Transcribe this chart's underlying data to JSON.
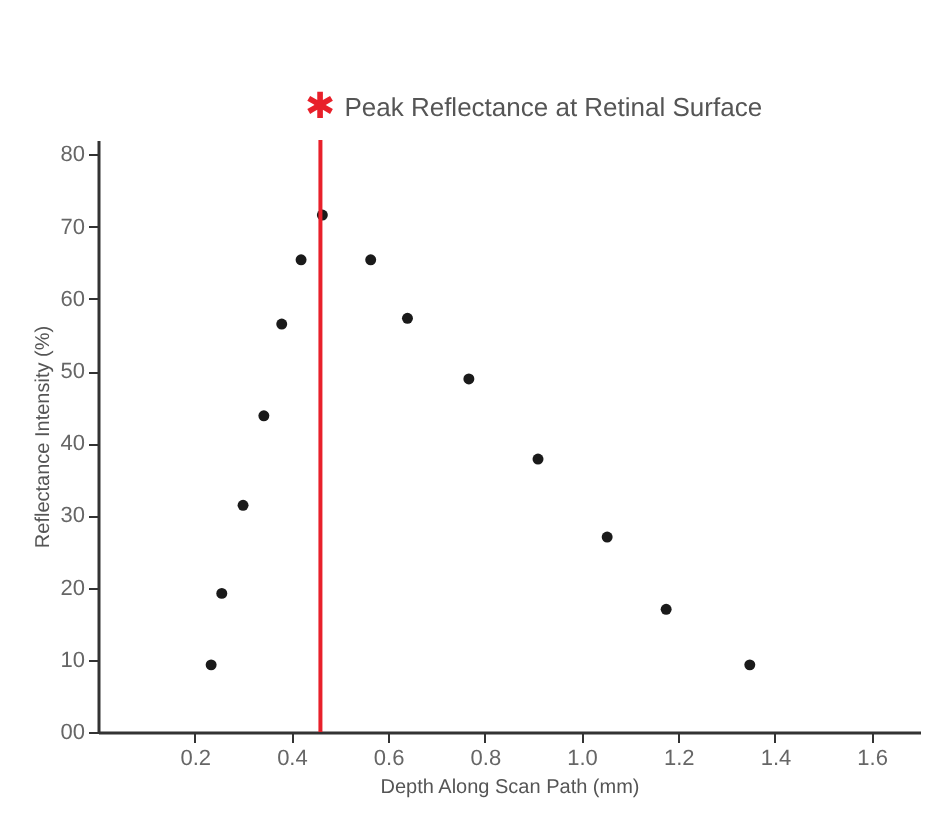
{
  "chart_data": {
    "type": "scatter",
    "xlabel": "Depth Along Scan Path (mm)",
    "ylabel": "Reflectance Intensity (%)",
    "x": [
      0.234,
      0.256,
      0.3,
      0.343,
      0.38,
      0.42,
      0.464,
      0.564,
      0.64,
      0.767,
      0.91,
      1.053,
      1.175,
      1.348
    ],
    "values": [
      9.3,
      19.2,
      31.4,
      43.8,
      56.5,
      65.4,
      71.6,
      65.4,
      57.3,
      48.9,
      37.8,
      27,
      17,
      9.3
    ],
    "color": "#1a1a1a",
    "xlim": [
      0,
      1.7
    ],
    "xticks": [
      0.2,
      0.4,
      0.6,
      0.8,
      {
        "value": 1.0,
        "label": "1.0"
      },
      1.2,
      1.4,
      1.6
    ],
    "ylim": [
      0,
      82
    ],
    "yticks": [
      {
        "value": 0,
        "label": "00"
      },
      10,
      20,
      30,
      40,
      50,
      60,
      70,
      80
    ],
    "ref_lines": [
      {
        "axis": "x",
        "value": 0.46,
        "label": "Peak Reflectance at Retinal Surface",
        "color": "#e8202a"
      }
    ],
    "annotations": [
      "✱"
    ],
    "grid": false
  }
}
